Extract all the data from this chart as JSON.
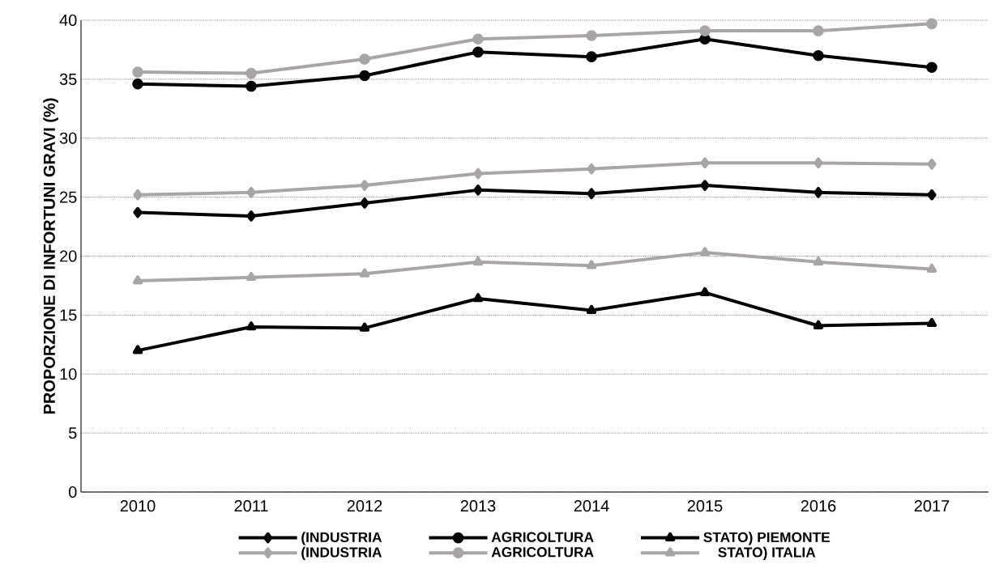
{
  "chart_data": {
    "type": "line",
    "ylabel": "PROPORZIONE DI INFORTUNI GRAVI (%)",
    "categories": [
      "2010",
      "2011",
      "2012",
      "2013",
      "2014",
      "2015",
      "2016",
      "2017"
    ],
    "series": [
      {
        "name": "(INDUSTRIA",
        "color": "#000000",
        "marker": "diamond",
        "values": [
          23.7,
          23.4,
          24.5,
          25.6,
          25.3,
          26.0,
          25.4,
          25.2
        ]
      },
      {
        "name": "AGRICOLTURA",
        "color": "#000000",
        "marker": "circle",
        "values": [
          34.6,
          34.4,
          35.3,
          37.3,
          36.9,
          38.4,
          37.0,
          36.0
        ]
      },
      {
        "name": "STATO) PIEMONTE",
        "color": "#000000",
        "marker": "triangle",
        "values": [
          12.0,
          14.0,
          13.9,
          16.4,
          15.4,
          16.9,
          14.1,
          14.3
        ]
      },
      {
        "name": "(INDUSTRIA",
        "color": "#a9a5a5",
        "marker": "diamond",
        "values": [
          25.2,
          25.4,
          26.0,
          27.0,
          27.4,
          27.9,
          27.9,
          27.8
        ]
      },
      {
        "name": "AGRICOLTURA",
        "color": "#a9a5a5",
        "marker": "circle",
        "values": [
          35.6,
          35.5,
          36.7,
          38.4,
          38.7,
          39.1,
          39.1,
          39.7
        ]
      },
      {
        "name": "STATO) ITALIA",
        "color": "#a9a5a5",
        "marker": "triangle",
        "values": [
          17.9,
          18.2,
          18.5,
          19.5,
          19.2,
          20.3,
          19.5,
          18.9
        ]
      }
    ],
    "ylim": [
      0,
      40
    ],
    "yticks": [
      0,
      5,
      10,
      15,
      20,
      25,
      30,
      35,
      40
    ],
    "grid": "y",
    "legend": "bottom",
    "line_style": "solid"
  }
}
